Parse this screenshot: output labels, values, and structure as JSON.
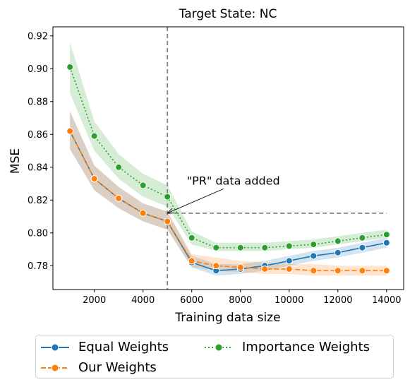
{
  "chart_data": {
    "type": "line",
    "title": "Target State: NC",
    "xlabel": "Training data size",
    "ylabel": "MSE",
    "xlim": [
      300,
      14700
    ],
    "ylim": [
      0.7655,
      0.9255
    ],
    "xticks": [
      2000,
      4000,
      6000,
      8000,
      10000,
      12000,
      14000
    ],
    "yticks": [
      0.78,
      0.8,
      0.82,
      0.84,
      0.86,
      0.88,
      0.9,
      0.92
    ],
    "x": [
      1000,
      2000,
      3000,
      4000,
      5000,
      6000,
      7000,
      8000,
      9000,
      10000,
      11000,
      12000,
      13000,
      14000
    ],
    "series": [
      {
        "name": "Equal Weights",
        "color": "#1f77b4",
        "line_style": "solid",
        "values": [
          0.862,
          0.833,
          0.821,
          0.812,
          0.807,
          0.782,
          0.777,
          0.778,
          0.78,
          0.783,
          0.786,
          0.788,
          0.791,
          0.794
        ],
        "band_lower": [
          0.851,
          0.826,
          0.815,
          0.807,
          0.802,
          0.779,
          0.774,
          0.775,
          0.777,
          0.78,
          0.783,
          0.785,
          0.788,
          0.791
        ],
        "band_upper": [
          0.874,
          0.841,
          0.828,
          0.818,
          0.813,
          0.786,
          0.781,
          0.781,
          0.783,
          0.786,
          0.789,
          0.791,
          0.794,
          0.797
        ]
      },
      {
        "name": "Our Weights",
        "color": "#ff7f0e",
        "line_style": "dashed",
        "values": [
          0.862,
          0.833,
          0.821,
          0.812,
          0.807,
          0.783,
          0.78,
          0.779,
          0.778,
          0.778,
          0.777,
          0.777,
          0.777,
          0.777
        ],
        "band_lower": [
          0.851,
          0.826,
          0.815,
          0.807,
          0.802,
          0.779,
          0.777,
          0.776,
          0.775,
          0.775,
          0.774,
          0.774,
          0.774,
          0.774
        ],
        "band_upper": [
          0.874,
          0.841,
          0.828,
          0.818,
          0.813,
          0.787,
          0.785,
          0.783,
          0.782,
          0.781,
          0.781,
          0.78,
          0.78,
          0.78
        ]
      },
      {
        "name": "Importance Weights",
        "color": "#2ca02c",
        "line_style": "dotted",
        "values": [
          0.901,
          0.859,
          0.84,
          0.829,
          0.822,
          0.797,
          0.791,
          0.791,
          0.791,
          0.792,
          0.793,
          0.795,
          0.797,
          0.799
        ],
        "band_lower": [
          0.885,
          0.85,
          0.833,
          0.822,
          0.816,
          0.793,
          0.789,
          0.789,
          0.789,
          0.79,
          0.791,
          0.793,
          0.795,
          0.797
        ],
        "band_upper": [
          0.916,
          0.868,
          0.848,
          0.836,
          0.829,
          0.801,
          0.794,
          0.794,
          0.794,
          0.795,
          0.796,
          0.798,
          0.8,
          0.802
        ]
      }
    ],
    "vertical_reference_x": 5000,
    "horizontal_reference": {
      "y": 0.812,
      "x_start": 5000,
      "x_end": 14000
    },
    "annotation": {
      "text": "\"PR\" data added",
      "point_x": 5000,
      "point_y": 0.812,
      "text_x": 5800,
      "text_y": 0.832
    },
    "grid": false,
    "legend_placement": "bottom-center"
  }
}
